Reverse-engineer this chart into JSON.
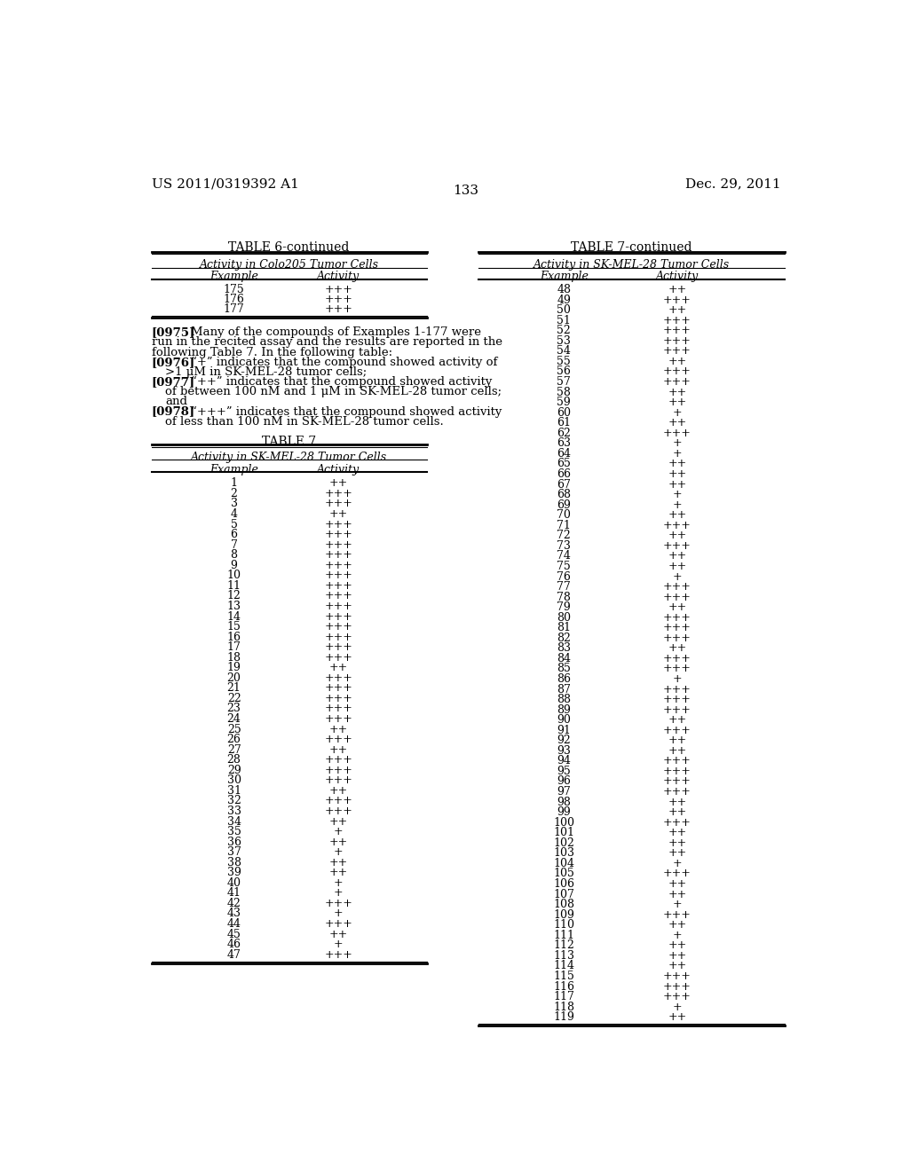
{
  "page_number": "133",
  "patent_left": "US 2011/0319392 A1",
  "patent_right": "Dec. 29, 2011",
  "background_color": "#ffffff",
  "text_color": "#000000",
  "table6_continued_title": "TABLE 6-continued",
  "table6_subtitle": "Activity in Colo205 Tumor Cells",
  "table6_col1": "Example",
  "table6_col2": "Activity",
  "table6_data": [
    [
      "175",
      "+++"
    ],
    [
      "176",
      "+++"
    ],
    [
      "177",
      "+++"
    ]
  ],
  "table7_title": "TABLE 7",
  "table7_subtitle": "Activity in SK-MEL-28 Tumor Cells",
  "table7_col1": "Example",
  "table7_col2": "Activity",
  "table7_data_left": [
    [
      "1",
      "++"
    ],
    [
      "2",
      "+++"
    ],
    [
      "3",
      "+++"
    ],
    [
      "4",
      "++"
    ],
    [
      "5",
      "+++"
    ],
    [
      "6",
      "+++"
    ],
    [
      "7",
      "+++"
    ],
    [
      "8",
      "+++"
    ],
    [
      "9",
      "+++"
    ],
    [
      "10",
      "+++"
    ],
    [
      "11",
      "+++"
    ],
    [
      "12",
      "+++"
    ],
    [
      "13",
      "+++"
    ],
    [
      "14",
      "+++"
    ],
    [
      "15",
      "+++"
    ],
    [
      "16",
      "+++"
    ],
    [
      "17",
      "+++"
    ],
    [
      "18",
      "+++"
    ],
    [
      "19",
      "++"
    ],
    [
      "20",
      "+++"
    ],
    [
      "21",
      "+++"
    ],
    [
      "22",
      "+++"
    ],
    [
      "23",
      "+++"
    ],
    [
      "24",
      "+++"
    ],
    [
      "25",
      "++"
    ],
    [
      "26",
      "+++"
    ],
    [
      "27",
      "++"
    ],
    [
      "28",
      "+++"
    ],
    [
      "29",
      "+++"
    ],
    [
      "30",
      "+++"
    ],
    [
      "31",
      "++"
    ],
    [
      "32",
      "+++"
    ],
    [
      "33",
      "+++"
    ],
    [
      "34",
      "++"
    ],
    [
      "35",
      "+"
    ],
    [
      "36",
      "++"
    ],
    [
      "37",
      "+"
    ],
    [
      "38",
      "++"
    ],
    [
      "39",
      "++"
    ],
    [
      "40",
      "+"
    ],
    [
      "41",
      "+"
    ],
    [
      "42",
      "+++"
    ],
    [
      "43",
      "+"
    ],
    [
      "44",
      "+++"
    ],
    [
      "45",
      "++"
    ],
    [
      "46",
      "+"
    ],
    [
      "47",
      "+++"
    ]
  ],
  "table7_continued_title": "TABLE 7-continued",
  "table7_continued_subtitle": "Activity in SK-MEL-28 Tumor Cells",
  "table7_data_right": [
    [
      "48",
      "++"
    ],
    [
      "49",
      "+++"
    ],
    [
      "50",
      "++"
    ],
    [
      "51",
      "+++"
    ],
    [
      "52",
      "+++"
    ],
    [
      "53",
      "+++"
    ],
    [
      "54",
      "+++"
    ],
    [
      "55",
      "++"
    ],
    [
      "56",
      "+++"
    ],
    [
      "57",
      "+++"
    ],
    [
      "58",
      "++"
    ],
    [
      "59",
      "++"
    ],
    [
      "60",
      "+"
    ],
    [
      "61",
      "++"
    ],
    [
      "62",
      "+++"
    ],
    [
      "63",
      "+"
    ],
    [
      "64",
      "+"
    ],
    [
      "65",
      "++"
    ],
    [
      "66",
      "++"
    ],
    [
      "67",
      "++"
    ],
    [
      "68",
      "+"
    ],
    [
      "69",
      "+"
    ],
    [
      "70",
      "++"
    ],
    [
      "71",
      "+++"
    ],
    [
      "72",
      "++"
    ],
    [
      "73",
      "+++"
    ],
    [
      "74",
      "++"
    ],
    [
      "75",
      "++"
    ],
    [
      "76",
      "+"
    ],
    [
      "77",
      "+++"
    ],
    [
      "78",
      "+++"
    ],
    [
      "79",
      "++"
    ],
    [
      "80",
      "+++"
    ],
    [
      "81",
      "+++"
    ],
    [
      "82",
      "+++"
    ],
    [
      "83",
      "++"
    ],
    [
      "84",
      "+++"
    ],
    [
      "85",
      "+++"
    ],
    [
      "86",
      "+"
    ],
    [
      "87",
      "+++"
    ],
    [
      "88",
      "+++"
    ],
    [
      "89",
      "+++"
    ],
    [
      "90",
      "++"
    ],
    [
      "91",
      "+++"
    ],
    [
      "92",
      "++"
    ],
    [
      "93",
      "++"
    ],
    [
      "94",
      "+++"
    ],
    [
      "95",
      "+++"
    ],
    [
      "96",
      "+++"
    ],
    [
      "97",
      "+++"
    ],
    [
      "98",
      "++"
    ],
    [
      "99",
      "++"
    ],
    [
      "100",
      "+++"
    ],
    [
      "101",
      "++"
    ],
    [
      "102",
      "++"
    ],
    [
      "103",
      "++"
    ],
    [
      "104",
      "+"
    ],
    [
      "105",
      "+++"
    ],
    [
      "106",
      "++"
    ],
    [
      "107",
      "++"
    ],
    [
      "108",
      "+"
    ],
    [
      "109",
      "+++"
    ],
    [
      "110",
      "++"
    ],
    [
      "111",
      "+"
    ],
    [
      "112",
      "++"
    ],
    [
      "113",
      "++"
    ],
    [
      "114",
      "++"
    ],
    [
      "115",
      "+++"
    ],
    [
      "116",
      "+++"
    ],
    [
      "117",
      "+++"
    ],
    [
      "118",
      "+"
    ],
    [
      "119",
      "++"
    ]
  ],
  "para_lines": [
    {
      "bold": "[0975]",
      "text": "    Many of the compounds of Examples 1-177 were run in the recited assay and the results are reported in the following Table 7. In the following table:"
    },
    {
      "bold": "[0976]",
      "text": "    “+” indicates that the compound showed activity of\n    >1 μM in SK-MEL-28 tumor cells;"
    },
    {
      "bold": "[0977]",
      "text": "    “++” indicates that the compound showed activity\n    of between 100 nM and 1 μM in SK-MEL-28 tumor cells;\n    and"
    },
    {
      "bold": "[0978]",
      "text": "    “+++” indicates that the compound showed activity\n    of less than 100 nM in SK-MEL-28 tumor cells."
    }
  ]
}
